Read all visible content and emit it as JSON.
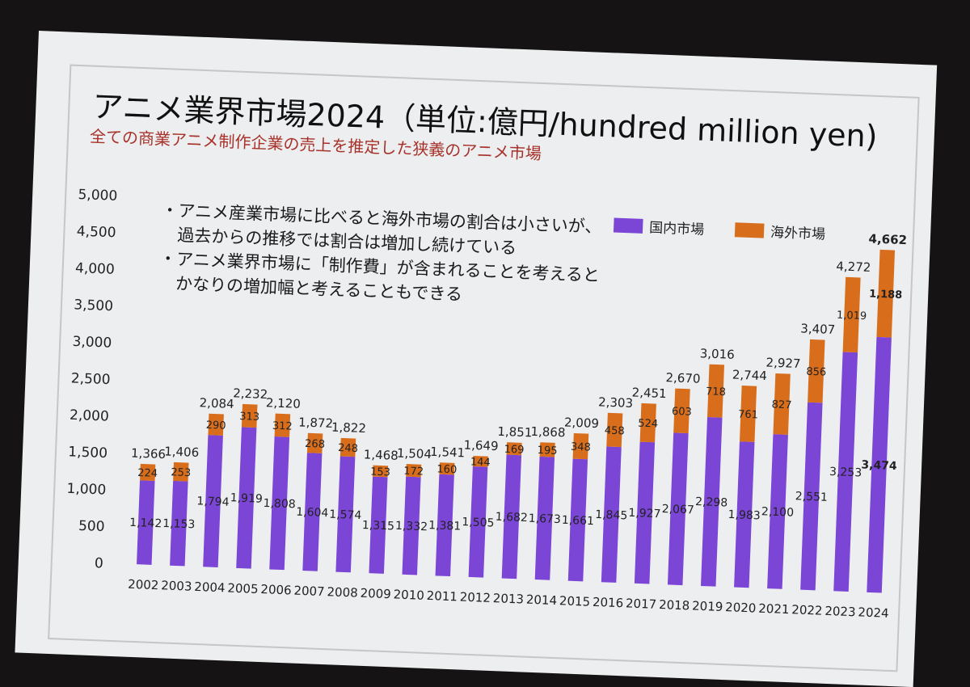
{
  "slide": {
    "title": "アニメ業界市場2024（単位:億円/hundred million yen)",
    "subtitle": "全ての商業アニメ制作企業の売上を推定した狭義のアニメ市場",
    "bullets": [
      "・アニメ産業市場に比べると海外市場の割合は小さいが、",
      "　過去からの推移では割合は増加し続けている",
      "・アニメ業界市場に「制作費」が含まれることを考えると",
      "　かなりの増加幅と考えることもできる"
    ]
  },
  "chart_data": {
    "type": "bar",
    "stacked": true,
    "title": "アニメ業界市場2024（単位:億円/hundred million yen)",
    "xlabel": "",
    "ylabel": "",
    "ylim": [
      0,
      5000
    ],
    "yticks": [
      "0",
      "500",
      "1,000",
      "1,500",
      "2,000",
      "2,500",
      "3,000",
      "3,500",
      "4,000",
      "4,500",
      "5,000"
    ],
    "ytick_values": [
      0,
      500,
      1000,
      1500,
      2000,
      2500,
      3000,
      3500,
      4000,
      4500,
      5000
    ],
    "grid": false,
    "legend_position": "top-right",
    "categories": [
      "2002",
      "2003",
      "2004",
      "2005",
      "2006",
      "2007",
      "2008",
      "2009",
      "2010",
      "2011",
      "2012",
      "2013",
      "2014",
      "2015",
      "2016",
      "2017",
      "2018",
      "2019",
      "2020",
      "2021",
      "2022",
      "2023",
      "2024"
    ],
    "series": [
      {
        "name": "国内市場",
        "color": "#7b45d6",
        "values": [
          1142,
          1153,
          1794,
          1919,
          1808,
          1604,
          1574,
          1315,
          1332,
          1381,
          1505,
          1682,
          1673,
          1661,
          1845,
          1927,
          2067,
          2298,
          1983,
          2100,
          2551,
          3253,
          3474
        ]
      },
      {
        "name": "海外市場",
        "color": "#d86e1c",
        "values": [
          224,
          253,
          290,
          313,
          312,
          268,
          248,
          153,
          172,
          160,
          144,
          169,
          195,
          348,
          458,
          524,
          603,
          718,
          761,
          827,
          856,
          1019,
          1188
        ]
      }
    ],
    "totals": [
      1366,
      1406,
      2084,
      2232,
      2120,
      1872,
      1822,
      1468,
      1504,
      1541,
      1649,
      1851,
      1868,
      2009,
      2303,
      2451,
      2670,
      3016,
      2744,
      2927,
      3407,
      4272,
      4662
    ]
  }
}
